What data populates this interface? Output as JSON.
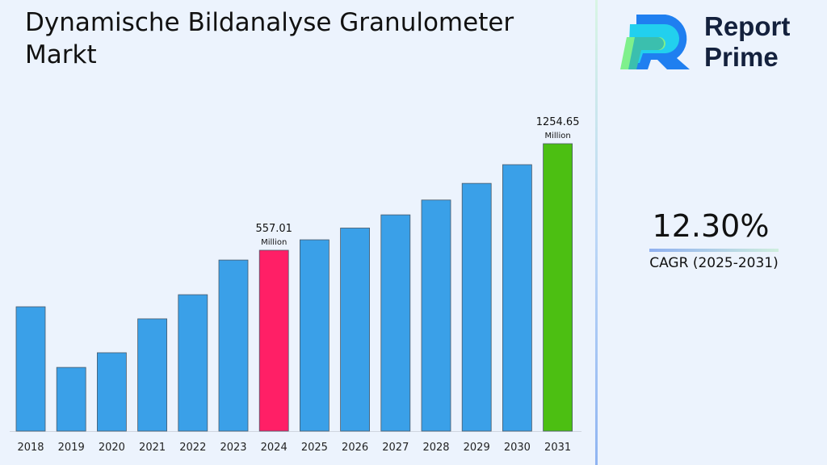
{
  "title": "Dynamische Bildanalyse Granulometer Markt",
  "logo": {
    "line1": "Report",
    "line2": "Prime"
  },
  "cagr": {
    "value": "12.30%",
    "label": "CAGR (2025-2031)"
  },
  "chart_data": {
    "type": "bar",
    "title": "Dynamische Bildanalyse Granulometer Markt",
    "categories": [
      "2018",
      "2019",
      "2020",
      "2021",
      "2022",
      "2023",
      "2024",
      "2025",
      "2026",
      "2027",
      "2028",
      "2029",
      "2030",
      "2031"
    ],
    "values": [
      187,
      -210,
      -114,
      108,
      266,
      493,
      557.01,
      625.53,
      702.47,
      788.87,
      885.9,
      994.9,
      1117.3,
      1254.65
    ],
    "ylim": [
      -627,
      1300
    ],
    "grid": false,
    "colors": {
      "default": "#3aa0e8",
      "highlight_2024": "#ff1f66",
      "highlight_2031": "#4cbf12"
    },
    "annotations": [
      {
        "category": "2024",
        "value": "557.01",
        "unit": "Million"
      },
      {
        "category": "2031",
        "value": "1254.65",
        "unit": "Million"
      }
    ]
  }
}
